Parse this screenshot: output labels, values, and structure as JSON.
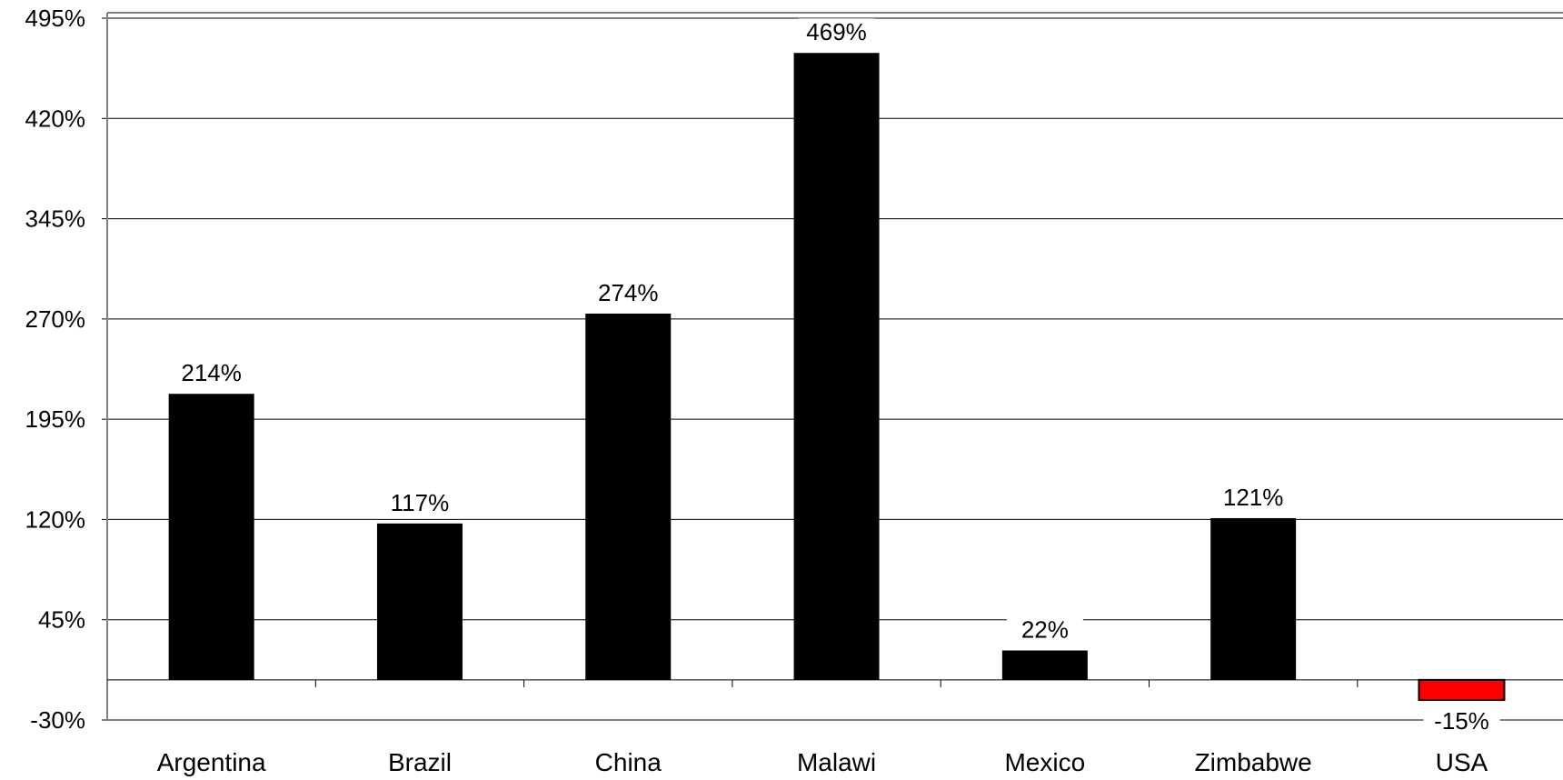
{
  "chart_data": {
    "type": "bar",
    "title": "",
    "xlabel": "",
    "ylabel": "",
    "ylim": [
      -30,
      495
    ],
    "y_ticks": [
      -30,
      45,
      120,
      195,
      270,
      345,
      420,
      495
    ],
    "y_tick_labels": [
      "-30%",
      "45%",
      "120%",
      "195%",
      "270%",
      "345%",
      "420%",
      "495%"
    ],
    "grid": true,
    "legend": "none",
    "categories": [
      "Argentina",
      "Brazil",
      "China",
      "Malawi",
      "Mexico",
      "Zimbabwe",
      "USA"
    ],
    "values": [
      214,
      117,
      274,
      469,
      22,
      121,
      -15
    ],
    "data_labels": [
      "214%",
      "117%",
      "274%",
      "469%",
      "22%",
      "121%",
      "-15%"
    ],
    "colors": {
      "positive_bar": "#000000",
      "negative_bar": "#ff0000",
      "gridline": "#000000",
      "text": "#000000"
    }
  }
}
